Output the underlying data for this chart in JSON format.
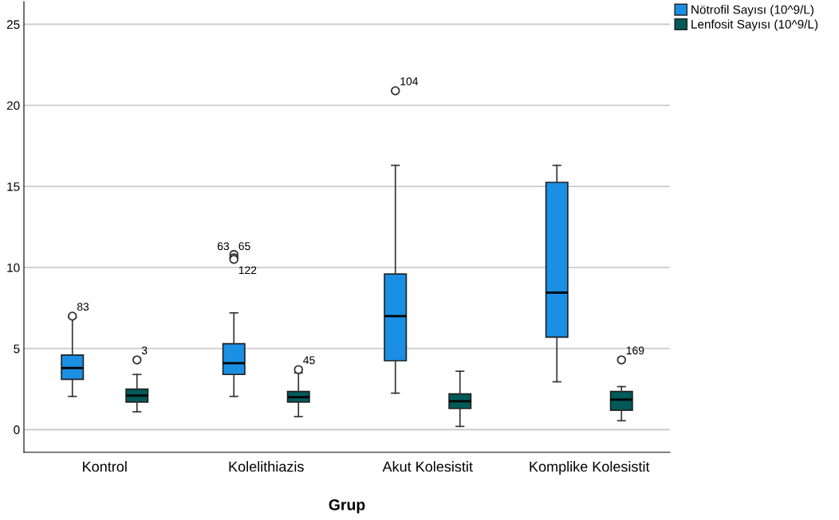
{
  "chart_data": {
    "type": "box",
    "xlabel": "Grup",
    "categories": [
      "Kontrol",
      "Kolelithiazis",
      "Akut Kolesistit",
      "Komplike Kolesistit"
    ],
    "series": [
      {
        "name": "Nötrofil Sayısı (10^9/L)",
        "color": "#1a8fe3",
        "boxes": [
          {
            "low": 2.05,
            "q1": 3.1,
            "median": 3.8,
            "q3": 4.6,
            "high": 6.9,
            "outliers": [
              7.0
            ]
          },
          {
            "low": 2.05,
            "q1": 3.4,
            "median": 4.1,
            "q3": 5.3,
            "high": 7.2,
            "outliers": [
              10.8,
              10.6,
              10.5
            ]
          },
          {
            "low": 2.25,
            "q1": 4.25,
            "median": 7.0,
            "q3": 9.6,
            "high": 16.3,
            "outliers": [
              20.9
            ]
          },
          {
            "low": 2.95,
            "q1": 5.7,
            "median": 8.45,
            "q3": 15.25,
            "high": 16.3
          }
        ]
      },
      {
        "name": "Lenfosit Sayısı (10^9/L)",
        "color": "#005a5a",
        "boxes": [
          {
            "low": 1.1,
            "q1": 1.7,
            "median": 2.1,
            "q3": 2.5,
            "high": 3.4,
            "outliers": [
              4.3
            ]
          },
          {
            "low": 0.8,
            "q1": 1.7,
            "median": 2.0,
            "q3": 2.35,
            "high": 3.5,
            "outliers": [
              3.7
            ]
          },
          {
            "low": 0.2,
            "q1": 1.3,
            "median": 1.75,
            "q3": 2.2,
            "high": 3.6
          },
          {
            "low": 0.55,
            "q1": 1.2,
            "median": 1.85,
            "q3": 2.35,
            "high": 2.65,
            "outliers": [
              4.3
            ]
          }
        ]
      }
    ],
    "ylim": [
      -1.4,
      26.4
    ],
    "yticks": [
      0,
      5,
      10,
      15,
      20,
      25
    ],
    "grid": "y",
    "legend": "top right",
    "annotations": [
      "83",
      "3",
      "63",
      "65",
      "122",
      "45",
      "104",
      "169"
    ]
  }
}
